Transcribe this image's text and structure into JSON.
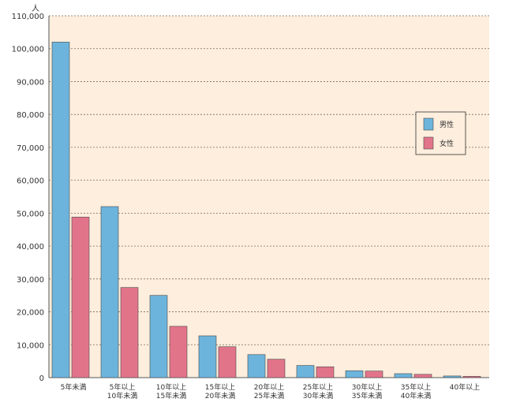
{
  "chart_data": {
    "type": "bar",
    "title": "",
    "xlabel": "",
    "ylabel": "人",
    "ylim": [
      0,
      110000
    ],
    "yticks": [
      0,
      10000,
      20000,
      30000,
      40000,
      50000,
      60000,
      70000,
      80000,
      90000,
      100000,
      110000
    ],
    "ytick_labels": [
      "0",
      "10,000",
      "20,000",
      "30,000",
      "40,000",
      "50,000",
      "60,000",
      "70,000",
      "80,000",
      "90,000",
      "100,000",
      "110,000"
    ],
    "grid": true,
    "legend_position": "right",
    "categories": [
      [
        "5年未満"
      ],
      [
        "5年以上",
        "10年未満"
      ],
      [
        "10年以上",
        "15年未満"
      ],
      [
        "15年以上",
        "20年未満"
      ],
      [
        "20年以上",
        "25年未満"
      ],
      [
        "25年以上",
        "30年未満"
      ],
      [
        "30年以上",
        "35年未満"
      ],
      [
        "35年以上",
        "40年未満"
      ],
      [
        "40年以上"
      ]
    ],
    "series": [
      {
        "name": "男性",
        "color": "#6cb4dc",
        "values": [
          102000,
          52000,
          25000,
          12700,
          7000,
          3700,
          2100,
          1200,
          500
        ]
      },
      {
        "name": "女性",
        "color": "#e2748a",
        "values": [
          48800,
          27400,
          15600,
          9400,
          5600,
          3300,
          2000,
          1000,
          400
        ]
      }
    ],
    "plot_background": "#fdeedd"
  }
}
